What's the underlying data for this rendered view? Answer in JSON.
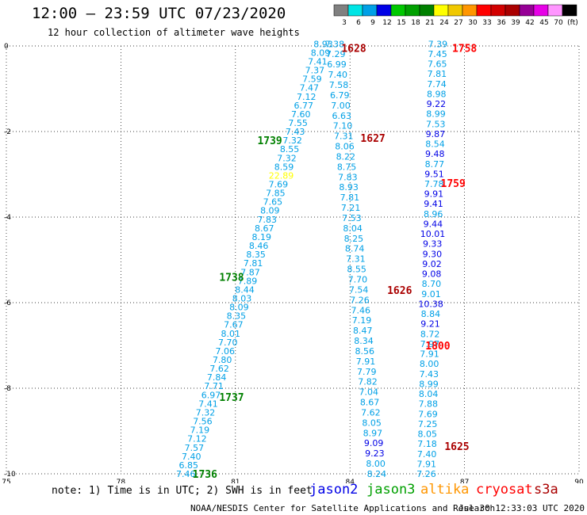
{
  "header": {
    "title": "12:00 – 23:59 UTC 07/23/2020",
    "subtitle": "12 hour collection of altimeter wave heights"
  },
  "colorbar": {
    "labels": [
      "3",
      "6",
      "9",
      "12",
      "15",
      "18",
      "21",
      "24",
      "27",
      "30",
      "33",
      "36",
      "39",
      "42",
      "45",
      "70",
      "(ft)"
    ],
    "colors": [
      "#808080",
      "#00e5e5",
      "#00a0e6",
      "#0000e6",
      "#00c800",
      "#00a000",
      "#008000",
      "#ffff00",
      "#f0c800",
      "#ff9600",
      "#ff0000",
      "#d20000",
      "#aa0000",
      "#960096",
      "#e600e6",
      "#ff96ff",
      "#000000"
    ]
  },
  "footer": {
    "note": "note: 1) Time is in UTC; 2) SWH is in feet",
    "credit": "NOAA/NESDIS Center for Satellite Applications and Research",
    "timestamp": "Jul 30 12:33:03 UTC 2020",
    "legend": [
      {
        "name": "jason2",
        "color": "#0000e6"
      },
      {
        "name": "jason3",
        "color": "#00a000"
      },
      {
        "name": "altika",
        "color": "#ff9600"
      },
      {
        "name": "cryosat",
        "color": "#ff0000"
      },
      {
        "name": "s3a",
        "color": "#aa0000"
      }
    ]
  },
  "chart_data": {
    "type": "scatter",
    "title": "12:00 – 23:59 UTC 07/23/2020",
    "subtitle": "12 hour collection of altimeter wave heights",
    "xlabel": "",
    "ylabel": "",
    "xlim": [
      75,
      90
    ],
    "ylim": [
      -10,
      0
    ],
    "x_ticks": [
      "75",
      "78",
      "81",
      "84",
      "87",
      "90"
    ],
    "y_ticks": [
      "0",
      "-2",
      "-4",
      "-6",
      "-8",
      "-10"
    ],
    "grid": true,
    "pass_labels": [
      {
        "text": "1628",
        "x": 84.1,
        "y": -0.05,
        "color": "#aa0000"
      },
      {
        "text": "1758",
        "x": 87.0,
        "y": -0.05,
        "color": "#ff0000"
      },
      {
        "text": "1739",
        "x": 81.9,
        "y": -2.2,
        "color": "#008000"
      },
      {
        "text": "1627",
        "x": 84.6,
        "y": -2.15,
        "color": "#aa0000"
      },
      {
        "text": "1759",
        "x": 86.7,
        "y": -3.2,
        "color": "#ff0000"
      },
      {
        "text": "1738",
        "x": 80.9,
        "y": -5.4,
        "color": "#008000"
      },
      {
        "text": "1626",
        "x": 85.3,
        "y": -5.7,
        "color": "#aa0000"
      },
      {
        "text": "1800",
        "x": 86.3,
        "y": -7.0,
        "color": "#ff0000"
      },
      {
        "text": "1737",
        "x": 80.9,
        "y": -8.2,
        "color": "#008000"
      },
      {
        "text": "1625",
        "x": 86.8,
        "y": -9.35,
        "color": "#aa0000"
      },
      {
        "text": "1736",
        "x": 80.2,
        "y": -10.0,
        "color": "#008000"
      }
    ],
    "series": [
      {
        "name": "1736-1739",
        "x0": 79.7,
        "x1": 83.3,
        "y0": -10.0,
        "y1": 0.05,
        "values": [
          "7.46",
          "6.85",
          "7.40",
          "7.57",
          "7.12",
          "7.19",
          "7.56",
          "7.32",
          "7.41",
          "6.97",
          "7.71",
          "7.84",
          "7.62",
          "7.80",
          "7.06",
          "7.70",
          "8.01",
          "7.67",
          "8.35",
          "8.09",
          "8.03",
          "8.44",
          "7.89",
          "7.87",
          "7.81",
          "8.35",
          "8.46",
          "8.19",
          "8.67",
          "7.83",
          "8.09",
          "7.65",
          "7.85",
          "7.69",
          "22.89",
          "8.59",
          "7.32",
          "8.55",
          "7.32",
          "7.43",
          "7.55",
          "7.60",
          "6.77",
          "7.12",
          "7.47",
          "7.59",
          "7.37",
          "7.41",
          "8.09",
          "8.93"
        ],
        "colors": {
          "22.89": "#ffff00"
        }
      },
      {
        "name": "1625-1628",
        "x0": 84.7,
        "x1": 83.6,
        "y0": -10.0,
        "y1": 0.05,
        "values": [
          "8.24",
          "8.00",
          "9.23",
          "9.09",
          "8.97",
          "8.05",
          "7.62",
          "8.67",
          "7.04",
          "7.82",
          "7.79",
          "7.91",
          "8.56",
          "8.34",
          "8.47",
          "7.19",
          "7.46",
          "7.26",
          "7.54",
          "7.70",
          "8.55",
          "7.31",
          "8.74",
          "8.25",
          "8.04",
          "7.53",
          "7.21",
          "7.81",
          "8.93",
          "7.83",
          "8.75",
          "8.22",
          "8.06",
          "7.31",
          "7.10",
          "6.63",
          "7.00",
          "6.79",
          "7.58",
          "7.40",
          "6.99",
          "7.29",
          "7.38"
        ],
        "colors": {
          "9.23": "#0000e6",
          "9.09": "#0000e6"
        }
      },
      {
        "name": "1758-1800",
        "x0": 86.0,
        "x1": 86.3,
        "y0": -10.0,
        "y1": 0.05,
        "values": [
          "7.26",
          "7.91",
          "7.40",
          "7.18",
          "8.05",
          "7.25",
          "7.69",
          "7.88",
          "8.04",
          "8.99",
          "7.43",
          "8.00",
          "7.91",
          "7.97",
          "8.72",
          "9.21",
          "8.84",
          "10.38",
          "9.01",
          "8.70",
          "9.08",
          "9.02",
          "9.30",
          "9.33",
          "10.01",
          "9.44",
          "8.96",
          "9.41",
          "9.91",
          "7.78",
          "9.51",
          "8.77",
          "9.48",
          "8.54",
          "9.87",
          "7.53",
          "8.99",
          "9.22",
          "8.98",
          "7.74",
          "7.81",
          "7.65",
          "7.45",
          "7.39"
        ],
        "colors": {
          "10.38": "#0000e6",
          "9.08": "#0000e6",
          "9.02": "#0000e6",
          "9.30": "#0000e6",
          "9.33": "#0000e6",
          "10.01": "#0000e6",
          "9.44": "#0000e6",
          "9.41": "#0000e6",
          "9.91": "#0000e6",
          "9.51": "#0000e6",
          "9.48": "#0000e6",
          "9.87": "#0000e6",
          "9.22": "#0000e6",
          "9.21": "#0000e6"
        }
      }
    ]
  }
}
